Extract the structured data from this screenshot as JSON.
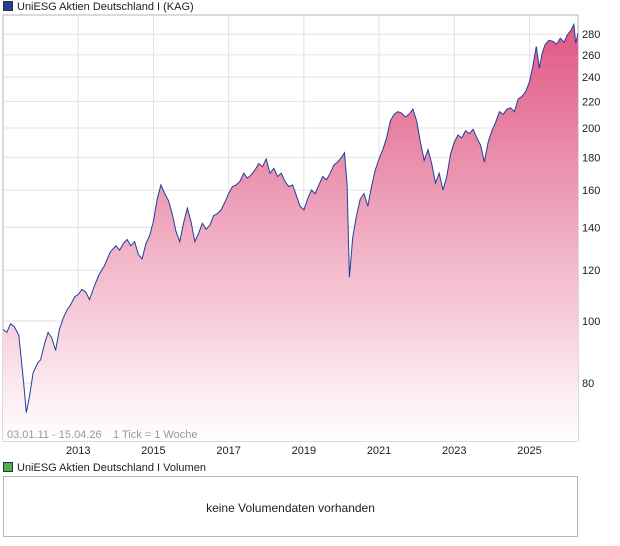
{
  "legend": {
    "price_label": "UniESG Aktien Deutschland I (KAG)",
    "price_color": "#1f3f9c",
    "volume_label": "UniESG Aktien Deutschland I Volumen",
    "volume_color": "#4caf50"
  },
  "footer": {
    "date_range": "03.01.11 - 15.04.26",
    "tick_info": "1 Tick = 1 Woche"
  },
  "volume_panel": {
    "message": "keine Volumendaten vorhanden"
  },
  "chart_data": {
    "type": "area",
    "series": [
      {
        "name": "UniESG Aktien Deutschland I (KAG)",
        "line_color": "#1f3f9c",
        "fill_top_color": "#e05884",
        "fill_bottom_color": "#ffffff",
        "points": [
          [
            2011.0,
            97
          ],
          [
            2011.1,
            96
          ],
          [
            2011.2,
            99
          ],
          [
            2011.3,
            98
          ],
          [
            2011.42,
            95
          ],
          [
            2011.55,
            80
          ],
          [
            2011.62,
            72
          ],
          [
            2011.7,
            76
          ],
          [
            2011.8,
            83
          ],
          [
            2011.92,
            86
          ],
          [
            2012.0,
            87
          ],
          [
            2012.1,
            92
          ],
          [
            2012.2,
            96
          ],
          [
            2012.3,
            94
          ],
          [
            2012.4,
            90
          ],
          [
            2012.5,
            97
          ],
          [
            2012.6,
            101
          ],
          [
            2012.7,
            104
          ],
          [
            2012.8,
            106
          ],
          [
            2012.9,
            109
          ],
          [
            2013.0,
            110
          ],
          [
            2013.1,
            112
          ],
          [
            2013.2,
            111
          ],
          [
            2013.3,
            108
          ],
          [
            2013.42,
            113
          ],
          [
            2013.55,
            118
          ],
          [
            2013.7,
            122
          ],
          [
            2013.85,
            128
          ],
          [
            2014.0,
            131
          ],
          [
            2014.1,
            129
          ],
          [
            2014.2,
            132
          ],
          [
            2014.3,
            134
          ],
          [
            2014.4,
            131
          ],
          [
            2014.5,
            133
          ],
          [
            2014.6,
            127
          ],
          [
            2014.7,
            125
          ],
          [
            2014.8,
            132
          ],
          [
            2014.9,
            136
          ],
          [
            2015.0,
            143
          ],
          [
            2015.1,
            155
          ],
          [
            2015.2,
            163
          ],
          [
            2015.3,
            158
          ],
          [
            2015.4,
            154
          ],
          [
            2015.5,
            147
          ],
          [
            2015.6,
            138
          ],
          [
            2015.7,
            133
          ],
          [
            2015.8,
            142
          ],
          [
            2015.9,
            150
          ],
          [
            2016.0,
            143
          ],
          [
            2016.1,
            133
          ],
          [
            2016.2,
            137
          ],
          [
            2016.3,
            142
          ],
          [
            2016.4,
            139
          ],
          [
            2016.5,
            141
          ],
          [
            2016.6,
            146
          ],
          [
            2016.7,
            147
          ],
          [
            2016.8,
            149
          ],
          [
            2016.92,
            154
          ],
          [
            2017.0,
            158
          ],
          [
            2017.1,
            162
          ],
          [
            2017.2,
            163
          ],
          [
            2017.3,
            165
          ],
          [
            2017.4,
            170
          ],
          [
            2017.5,
            167
          ],
          [
            2017.6,
            169
          ],
          [
            2017.7,
            172
          ],
          [
            2017.8,
            176
          ],
          [
            2017.9,
            174
          ],
          [
            2018.0,
            179
          ],
          [
            2018.1,
            170
          ],
          [
            2018.2,
            173
          ],
          [
            2018.3,
            168
          ],
          [
            2018.4,
            170
          ],
          [
            2018.5,
            165
          ],
          [
            2018.6,
            162
          ],
          [
            2018.7,
            163
          ],
          [
            2018.8,
            157
          ],
          [
            2018.9,
            151
          ],
          [
            2019.0,
            149
          ],
          [
            2019.1,
            155
          ],
          [
            2019.2,
            160
          ],
          [
            2019.3,
            158
          ],
          [
            2019.4,
            163
          ],
          [
            2019.5,
            168
          ],
          [
            2019.6,
            166
          ],
          [
            2019.7,
            170
          ],
          [
            2019.8,
            175
          ],
          [
            2019.9,
            177
          ],
          [
            2020.0,
            180
          ],
          [
            2020.08,
            183
          ],
          [
            2020.15,
            163
          ],
          [
            2020.21,
            117
          ],
          [
            2020.3,
            135
          ],
          [
            2020.4,
            146
          ],
          [
            2020.5,
            155
          ],
          [
            2020.6,
            158
          ],
          [
            2020.7,
            151
          ],
          [
            2020.8,
            162
          ],
          [
            2020.9,
            172
          ],
          [
            2021.0,
            179
          ],
          [
            2021.1,
            185
          ],
          [
            2021.2,
            193
          ],
          [
            2021.3,
            205
          ],
          [
            2021.4,
            210
          ],
          [
            2021.5,
            212
          ],
          [
            2021.6,
            211
          ],
          [
            2021.7,
            208
          ],
          [
            2021.8,
            210
          ],
          [
            2021.9,
            214
          ],
          [
            2022.0,
            205
          ],
          [
            2022.1,
            190
          ],
          [
            2022.2,
            178
          ],
          [
            2022.3,
            185
          ],
          [
            2022.4,
            176
          ],
          [
            2022.5,
            164
          ],
          [
            2022.6,
            170
          ],
          [
            2022.7,
            160
          ],
          [
            2022.8,
            168
          ],
          [
            2022.9,
            182
          ],
          [
            2023.0,
            190
          ],
          [
            2023.1,
            195
          ],
          [
            2023.2,
            193
          ],
          [
            2023.3,
            198
          ],
          [
            2023.4,
            196
          ],
          [
            2023.5,
            199
          ],
          [
            2023.6,
            193
          ],
          [
            2023.7,
            188
          ],
          [
            2023.8,
            177
          ],
          [
            2023.9,
            190
          ],
          [
            2024.0,
            198
          ],
          [
            2024.1,
            204
          ],
          [
            2024.2,
            212
          ],
          [
            2024.3,
            210
          ],
          [
            2024.4,
            214
          ],
          [
            2024.5,
            215
          ],
          [
            2024.6,
            212
          ],
          [
            2024.7,
            222
          ],
          [
            2024.8,
            224
          ],
          [
            2024.9,
            228
          ],
          [
            2025.0,
            236
          ],
          [
            2025.08,
            248
          ],
          [
            2025.18,
            268
          ],
          [
            2025.26,
            248
          ],
          [
            2025.34,
            262
          ],
          [
            2025.42,
            270
          ],
          [
            2025.52,
            274
          ],
          [
            2025.62,
            273
          ],
          [
            2025.72,
            270
          ],
          [
            2025.82,
            276
          ],
          [
            2025.92,
            272
          ],
          [
            2026.0,
            279
          ],
          [
            2026.1,
            284
          ],
          [
            2026.18,
            290
          ],
          [
            2026.23,
            271
          ],
          [
            2026.29,
            281
          ]
        ]
      }
    ],
    "x_ticks": [
      2013,
      2015,
      2017,
      2019,
      2021,
      2023,
      2025
    ],
    "xlim": [
      2011.0,
      2026.29
    ],
    "y_scale": "log",
    "y_ticks": [
      80,
      100,
      120,
      140,
      160,
      180,
      200,
      220,
      240,
      260,
      280
    ],
    "ylim": [
      65,
      300
    ],
    "grid": true,
    "legend_placement": "top-left"
  }
}
